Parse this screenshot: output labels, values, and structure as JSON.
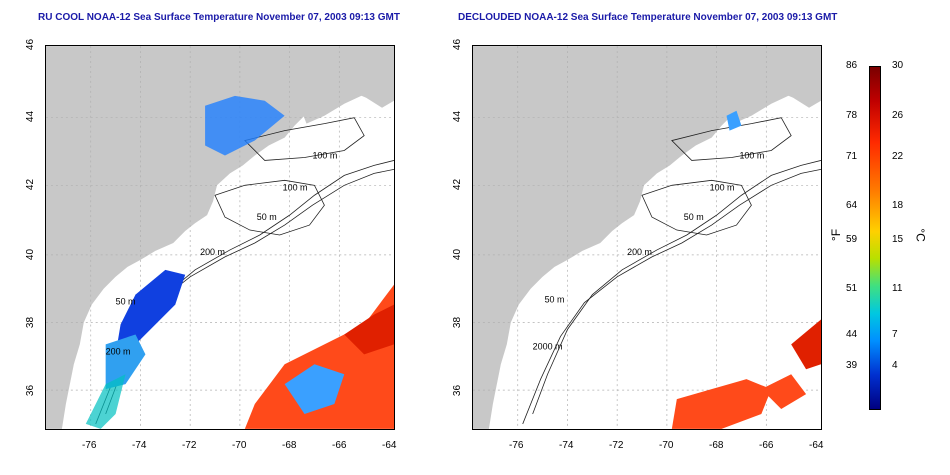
{
  "titles": {
    "left": "RU COOL NOAA-12 Sea Surface Temperature November 07, 2003 09:13 GMT",
    "right": "DECLOUDED NOAA-12 Sea Surface Temperature November 07, 2003 09:13 GMT"
  },
  "axes": {
    "lon_ticks": [
      "-76",
      "-74",
      "-72",
      "-70",
      "-68",
      "-66",
      "-64"
    ],
    "lat_ticks": [
      "46",
      "44",
      "42",
      "40",
      "38",
      "36"
    ]
  },
  "contour_labels": {
    "left": [
      "100 m",
      "100 m",
      "50 m",
      "200 m",
      "50 m",
      "200 m"
    ],
    "right": [
      "100 m",
      "100 m",
      "50 m",
      "200 m",
      "50 m",
      "2000 m"
    ]
  },
  "colorbar": {
    "fahrenheit": [
      "86",
      "78",
      "71",
      "64",
      "59",
      "51",
      "44",
      "39"
    ],
    "celsius": [
      "30",
      "26",
      "22",
      "18",
      "15",
      "11",
      "7",
      "4"
    ],
    "f_unit": "°F",
    "c_unit": "°C"
  },
  "colors": {
    "land": "#c8c8c8",
    "ocean": "#ffffff",
    "title": "#1a1aa8"
  }
}
